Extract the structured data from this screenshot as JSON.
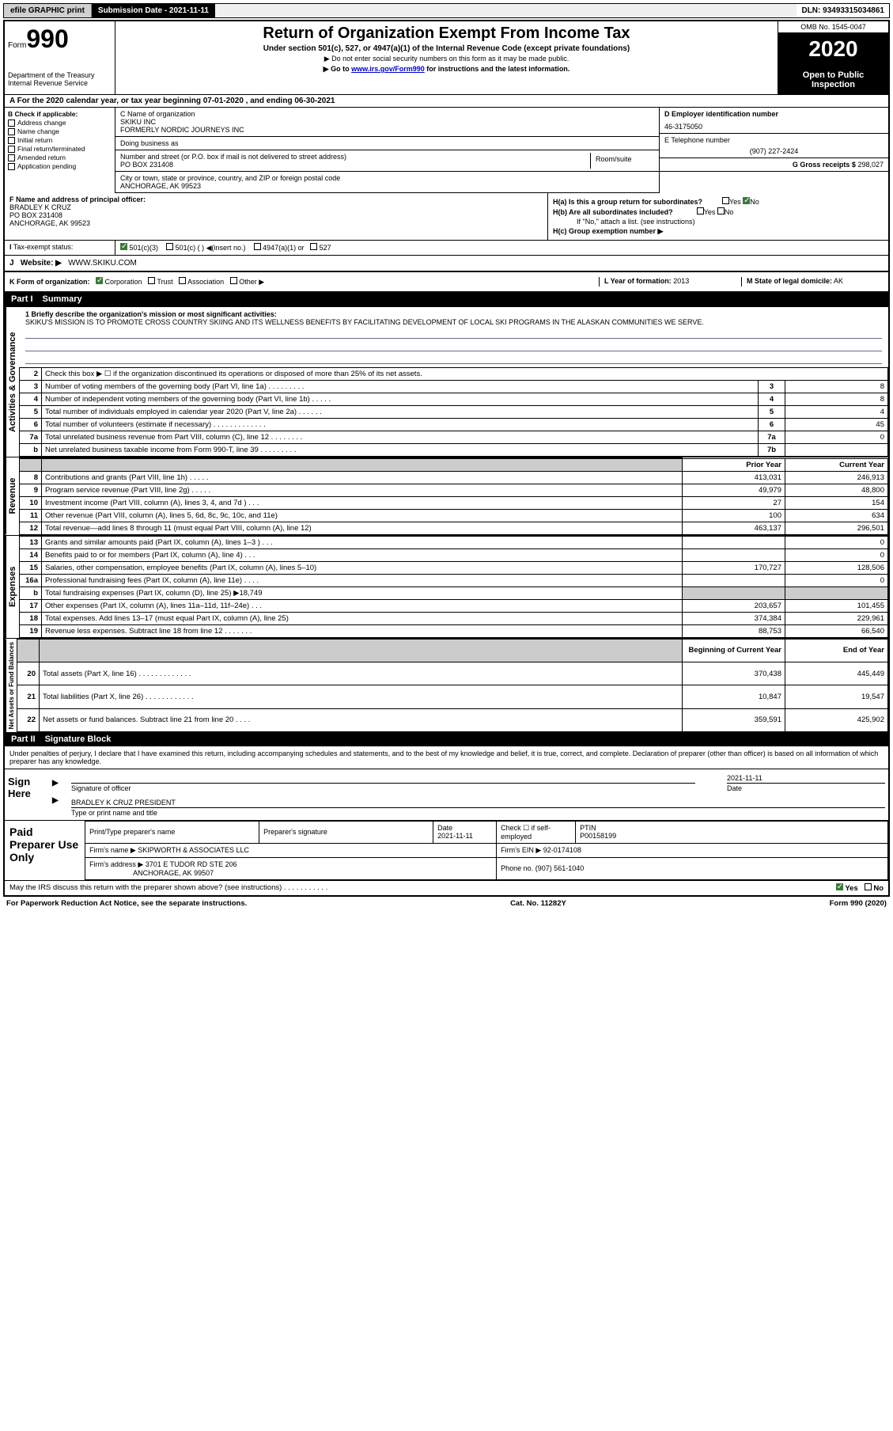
{
  "topbar": {
    "efile": "efile GRAPHIC print",
    "submission": "Submission Date - 2021-11-11",
    "dln": "DLN: 93493315034861"
  },
  "header": {
    "form_label": "Form",
    "form_number": "990",
    "dept": "Department of the Treasury",
    "irs": "Internal Revenue Service",
    "title": "Return of Organization Exempt From Income Tax",
    "subtitle": "Under section 501(c), 527, or 4947(a)(1) of the Internal Revenue Code (except private foundations)",
    "instr1": "▶ Do not enter social security numbers on this form as it may be made public.",
    "instr2_pre": "▶ Go to ",
    "instr2_link": "www.irs.gov/Form990",
    "instr2_post": " for instructions and the latest information.",
    "omb": "OMB No. 1545-0047",
    "year": "2020",
    "inspect": "Open to Public Inspection"
  },
  "line_a": "For the 2020 calendar year, or tax year beginning 07-01-2020    , and ending 06-30-2021",
  "box_b": {
    "label": "B Check if applicable:",
    "items": [
      "Address change",
      "Name change",
      "Initial return",
      "Final return/terminated",
      "Amended return",
      "Application pending"
    ]
  },
  "box_c": {
    "name_label": "C Name of organization",
    "name": "SKIKU INC",
    "formerly": "FORMERLY NORDIC JOURNEYS INC",
    "dba_label": "Doing business as",
    "addr_label": "Number and street (or P.O. box if mail is not delivered to street address)",
    "room_label": "Room/suite",
    "addr": "PO BOX 231408",
    "city_label": "City or town, state or province, country, and ZIP or foreign postal code",
    "city": "ANCHORAGE, AK  99523"
  },
  "box_d": {
    "label": "D Employer identification number",
    "value": "46-3175050"
  },
  "box_e": {
    "label": "E Telephone number",
    "value": "(907) 227-2424"
  },
  "box_g": {
    "label": "G Gross receipts $",
    "value": "298,027"
  },
  "box_f": {
    "label": "F  Name and address of principal officer:",
    "name": "BRADLEY K CRUZ",
    "addr1": "PO BOX 231408",
    "addr2": "ANCHORAGE, AK  99523"
  },
  "box_h": {
    "ha": "H(a)  Is this a group return for subordinates?",
    "hb": "H(b)  Are all subordinates included?",
    "hb_note": "If \"No,\" attach a list. (see instructions)",
    "hc": "H(c)  Group exemption number ▶",
    "yes": "Yes",
    "no": "No"
  },
  "box_i": {
    "label": "Tax-exempt status:",
    "opts": [
      "501(c)(3)",
      "501(c) (  ) ◀(insert no.)",
      "4947(a)(1) or",
      "527"
    ]
  },
  "box_j": {
    "label": "J",
    "text": "Website: ▶",
    "value": "WWW.SKIKU.COM"
  },
  "box_k": {
    "label": "K Form of organization:",
    "opts": [
      "Corporation",
      "Trust",
      "Association",
      "Other ▶"
    ]
  },
  "box_l": {
    "label": "L Year of formation:",
    "value": "2013"
  },
  "box_m": {
    "label": "M State of legal domicile:",
    "value": "AK"
  },
  "part1": {
    "num": "Part I",
    "title": "Summary"
  },
  "mission": {
    "label": "1  Briefly describe the organization's mission or most significant activities:",
    "text": "SKIKU'S MISSION IS TO PROMOTE CROSS COUNTRY SKIING AND ITS WELLNESS BENEFITS BY FACILITATING DEVELOPMENT OF LOCAL SKI PROGRAMS IN THE ALASKAN COMMUNITIES WE SERVE."
  },
  "vert_labels": {
    "ag": "Activities & Governance",
    "rev": "Revenue",
    "exp": "Expenses",
    "net": "Net Assets or Fund Balances"
  },
  "gov_rows": [
    {
      "n": "2",
      "d": "Check this box ▶ ☐ if the organization discontinued its operations or disposed of more than 25% of its net assets.",
      "b": "",
      "v": ""
    },
    {
      "n": "3",
      "d": "Number of voting members of the governing body (Part VI, line 1a)  .    .    .    .    .    .    .    .    .",
      "b": "3",
      "v": "8"
    },
    {
      "n": "4",
      "d": "Number of independent voting members of the governing body (Part VI, line 1b)  .    .    .    .    .",
      "b": "4",
      "v": "8"
    },
    {
      "n": "5",
      "d": "Total number of individuals employed in calendar year 2020 (Part V, line 2a)  .    .    .    .    .    .",
      "b": "5",
      "v": "4"
    },
    {
      "n": "6",
      "d": "Total number of volunteers (estimate if necessary)    .    .    .    .    .    .    .    .    .    .    .    .    .",
      "b": "6",
      "v": "45"
    },
    {
      "n": "7a",
      "d": "Total unrelated business revenue from Part VIII, column (C), line 12  .    .    .    .    .    .    .    .",
      "b": "7a",
      "v": "0"
    },
    {
      "n": "b",
      "d": "Net unrelated business taxable income from Form 990-T, line 39    .    .    .    .    .    .    .    .    .",
      "b": "7b",
      "v": ""
    }
  ],
  "yr_header": {
    "prior": "Prior Year",
    "current": "Current Year"
  },
  "rev_rows": [
    {
      "n": "8",
      "d": "Contributions and grants (Part VIII, line 1h)   .    .    .    .    .",
      "p": "413,031",
      "c": "246,913"
    },
    {
      "n": "9",
      "d": "Program service revenue (Part VIII, line 2g)   .    .    .    .    .",
      "p": "49,979",
      "c": "48,800"
    },
    {
      "n": "10",
      "d": "Investment income (Part VIII, column (A), lines 3, 4, and 7d )    .    .    .",
      "p": "27",
      "c": "154"
    },
    {
      "n": "11",
      "d": "Other revenue (Part VIII, column (A), lines 5, 6d, 8c, 9c, 10c, and 11e)",
      "p": "100",
      "c": "634"
    },
    {
      "n": "12",
      "d": "Total revenue—add lines 8 through 11 (must equal Part VIII, column (A), line 12)",
      "p": "463,137",
      "c": "296,501"
    }
  ],
  "exp_rows": [
    {
      "n": "13",
      "d": "Grants and similar amounts paid (Part IX, column (A), lines 1–3 )  .    .    .",
      "p": "",
      "c": "0"
    },
    {
      "n": "14",
      "d": "Benefits paid to or for members (Part IX, column (A), line 4)  .    .    .",
      "p": "",
      "c": "0"
    },
    {
      "n": "15",
      "d": "Salaries, other compensation, employee benefits (Part IX, column (A), lines 5–10)",
      "p": "170,727",
      "c": "128,506"
    },
    {
      "n": "16a",
      "d": "Professional fundraising fees (Part IX, column (A), line 11e)  .    .    .    .",
      "p": "",
      "c": "0"
    },
    {
      "n": "b",
      "d": "Total fundraising expenses (Part IX, column (D), line 25) ▶18,749",
      "p": "SHADE",
      "c": "SHADE"
    },
    {
      "n": "17",
      "d": "Other expenses (Part IX, column (A), lines 11a–11d, 11f–24e)   .    .    .",
      "p": "203,657",
      "c": "101,455"
    },
    {
      "n": "18",
      "d": "Total expenses. Add lines 13–17 (must equal Part IX, column (A), line 25)",
      "p": "374,384",
      "c": "229,961"
    },
    {
      "n": "19",
      "d": "Revenue less expenses. Subtract line 18 from line 12 .    .    .    .    .    .    .",
      "p": "88,753",
      "c": "66,540"
    }
  ],
  "net_header": {
    "begin": "Beginning of Current Year",
    "end": "End of Year"
  },
  "net_rows": [
    {
      "n": "20",
      "d": "Total assets (Part X, line 16) .    .    .    .    .    .    .    .    .    .    .    .    .",
      "p": "370,438",
      "c": "445,449"
    },
    {
      "n": "21",
      "d": "Total liabilities (Part X, line 26) .    .    .    .    .    .    .    .    .    .    .    .",
      "p": "10,847",
      "c": "19,547"
    },
    {
      "n": "22",
      "d": "Net assets or fund balances. Subtract line 21 from line 20  .    .    .    .",
      "p": "359,591",
      "c": "425,902"
    }
  ],
  "part2": {
    "num": "Part II",
    "title": "Signature Block"
  },
  "penalty": "Under penalties of perjury, I declare that I have examined this return, including accompanying schedules and statements, and to the best of my knowledge and belief, it is true, correct, and complete. Declaration of preparer (other than officer) is based on all information of which preparer has any knowledge.",
  "sign": {
    "label": "Sign Here",
    "sig_label": "Signature of officer",
    "date_label": "Date",
    "date": "2021-11-11",
    "name": "BRADLEY K CRUZ  PRESIDENT",
    "name_label": "Type or print name and title"
  },
  "prep": {
    "label": "Paid Preparer Use Only",
    "r1": [
      "Print/Type preparer's name",
      "Preparer's signature",
      "Date",
      "Check ☐ if self-employed",
      "PTIN"
    ],
    "r1v": [
      "",
      "",
      "2021-11-11",
      "",
      "P00158199"
    ],
    "firm_label": "Firm's name    ▶",
    "firm": "SKIPWORTH & ASSOCIATES LLC",
    "ein_label": "Firm's EIN ▶",
    "ein": "92-0174108",
    "addr_label": "Firm's address ▶",
    "addr1": "3701 E TUDOR RD STE 206",
    "addr2": "ANCHORAGE, AK  99507",
    "phone_label": "Phone no.",
    "phone": "(907) 561-1040"
  },
  "discuss": {
    "text": "May the IRS discuss this return with the preparer shown above? (see instructions)    .    .    .    .    .    .    .    .    .    .    .",
    "yes": "Yes",
    "no": "No"
  },
  "footer": {
    "left": "For Paperwork Reduction Act Notice, see the separate instructions.",
    "mid": "Cat. No. 11282Y",
    "right": "Form 990 (2020)"
  }
}
